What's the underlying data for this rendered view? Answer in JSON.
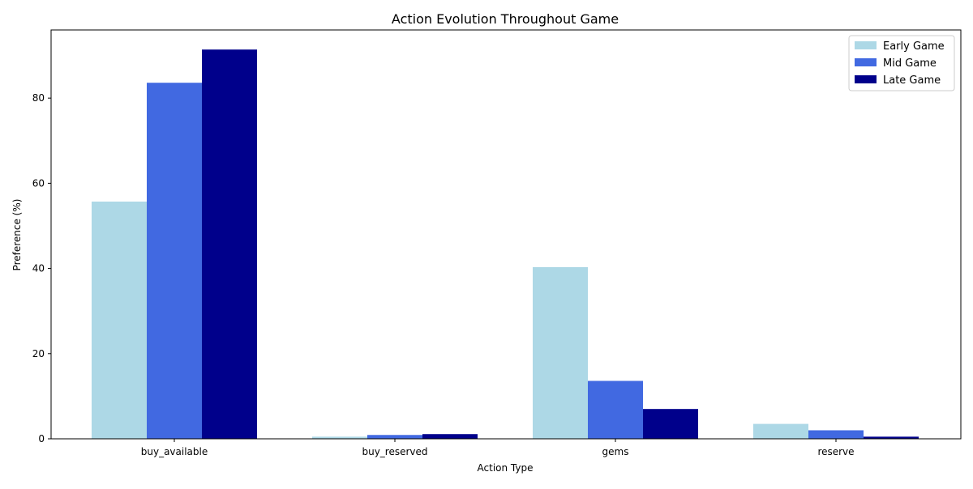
{
  "chart_data": {
    "type": "bar",
    "title": "Action Evolution Throughout Game",
    "xlabel": "Action Type",
    "ylabel": "Preference (%)",
    "categories": [
      "buy_available",
      "buy_reserved",
      "gems",
      "reserve"
    ],
    "series": [
      {
        "name": "Early Game",
        "color": "#add8e6",
        "values": [
          55.7,
          0.5,
          40.3,
          3.5
        ]
      },
      {
        "name": "Mid Game",
        "color": "#4169e1",
        "values": [
          83.6,
          0.9,
          13.6,
          2.0
        ]
      },
      {
        "name": "Late Game",
        "color": "#00008b",
        "values": [
          91.4,
          1.1,
          7.0,
          0.5
        ]
      }
    ],
    "ylim": [
      0,
      96
    ],
    "yticks": [
      0,
      20,
      40,
      60,
      80
    ],
    "grid": false,
    "legend_position": "top-right"
  }
}
